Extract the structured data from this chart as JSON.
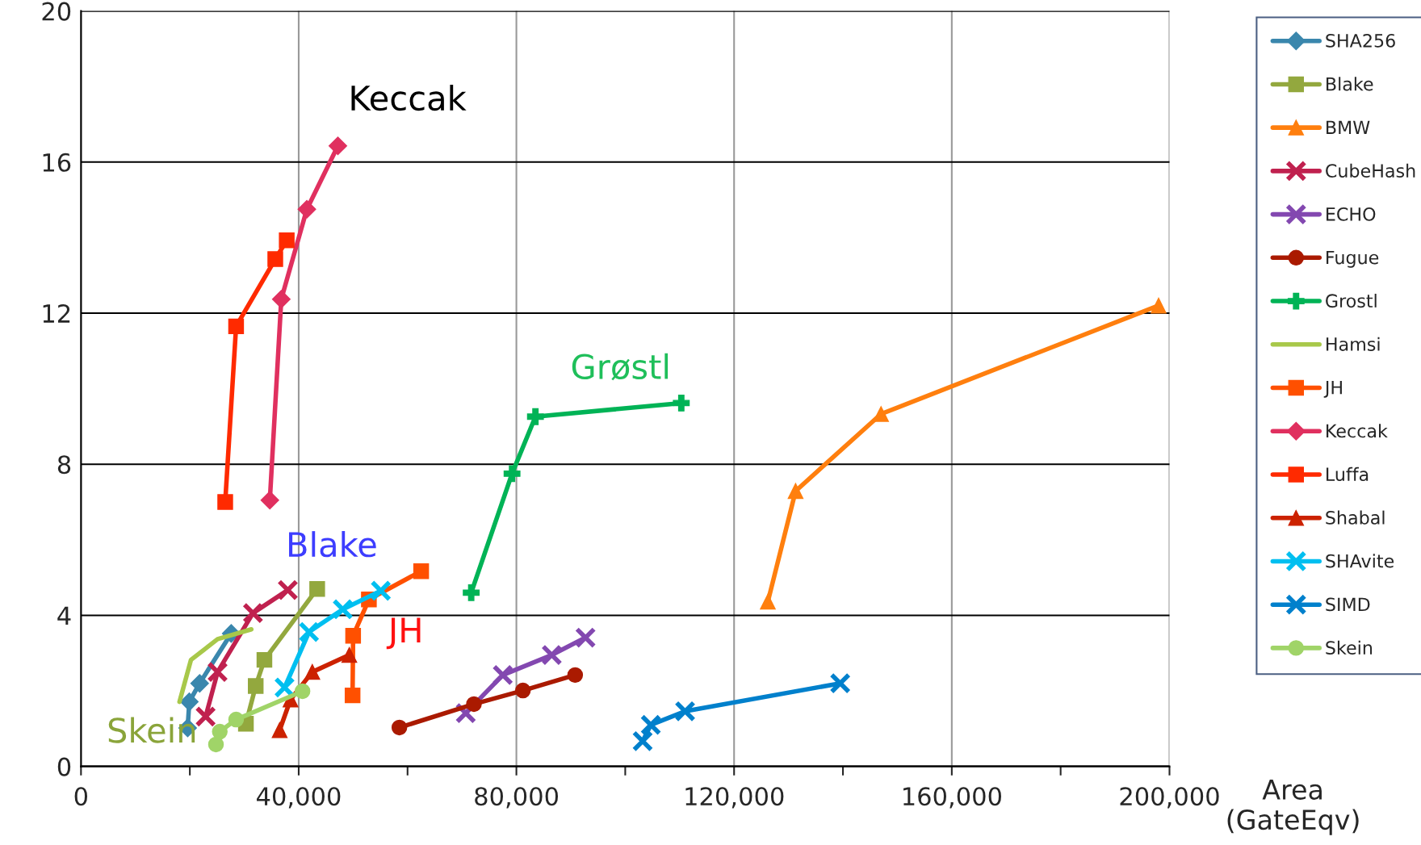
{
  "chart_data": {
    "type": "line",
    "xlabel": "Area\n(GateEqv)",
    "xlim": [
      0,
      200000
    ],
    "xticks": [
      0,
      {
        "value": 20000,
        "label": null
      },
      {
        "value": 40000,
        "label": "40,000"
      },
      {
        "value": 60000,
        "label": null
      },
      {
        "value": 80000,
        "label": "80,000"
      },
      {
        "value": 100000,
        "label": null
      },
      {
        "value": 120000,
        "label": "120,000"
      },
      {
        "value": 140000,
        "label": null
      },
      {
        "value": 160000,
        "label": "160,000"
      },
      {
        "value": 180000,
        "label": null
      },
      {
        "value": 200000,
        "label": "200,000"
      }
    ],
    "ylim": [
      0,
      20
    ],
    "yticks": [
      0,
      4,
      8,
      12,
      16,
      20
    ],
    "grid": true,
    "legend": "right",
    "series": [
      {
        "name": "SHA256",
        "color": "#3a87ad",
        "marker": "diamond",
        "x": [
          19600,
          19900,
          21800,
          27600
        ],
        "values": [
          1.02,
          1.71,
          2.2,
          3.52
        ]
      },
      {
        "name": "Blake",
        "color": "#93a83e",
        "marker": "square",
        "x": [
          30300,
          32100,
          33700,
          43400
        ],
        "values": [
          1.13,
          2.13,
          2.82,
          4.7
        ]
      },
      {
        "name": "BMW",
        "color": "#ff7f0e",
        "marker": "triangle",
        "x": [
          126200,
          131300,
          147000,
          198000
        ],
        "values": [
          4.36,
          7.29,
          9.33,
          12.2
        ]
      },
      {
        "name": "CubeHash",
        "color": "#c0214f",
        "marker": "cross",
        "x": [
          22900,
          25100,
          31600,
          38000
        ],
        "values": [
          1.32,
          2.5,
          4.06,
          4.67
        ]
      },
      {
        "name": "ECHO",
        "color": "#8348b0",
        "marker": "cross",
        "x": [
          70700,
          77500,
          86500,
          92700
        ],
        "values": [
          1.41,
          2.42,
          2.95,
          3.41
        ]
      },
      {
        "name": "Fugue",
        "color": "#aa1a00",
        "marker": "circle",
        "x": [
          58500,
          72200,
          81200,
          90800
        ],
        "values": [
          1.03,
          1.65,
          2.01,
          2.42
        ]
      },
      {
        "name": "Grostl",
        "color": "#00b356",
        "marker": "plus",
        "x": [
          71700,
          79200,
          83500,
          110300
        ],
        "values": [
          4.6,
          7.75,
          9.26,
          9.62
        ]
      },
      {
        "name": "Hamsi",
        "color": "#a8c84a",
        "marker": "none",
        "x": [
          18100,
          20200,
          25100,
          31300
        ],
        "values": [
          1.71,
          2.82,
          3.37,
          3.63
        ]
      },
      {
        "name": "JH",
        "color": "#ff5000",
        "marker": "square",
        "x": [
          49900,
          50000,
          52900,
          62500
        ],
        "values": [
          1.88,
          3.46,
          4.42,
          5.17
        ]
      },
      {
        "name": "Keccak",
        "color": "#e0305f",
        "marker": "diamond",
        "x": [
          34700,
          36800,
          41500,
          47200
        ],
        "values": [
          7.05,
          12.37,
          14.75,
          16.43
        ]
      },
      {
        "name": "Luffa",
        "color": "#ff2a00",
        "marker": "square",
        "x": [
          26500,
          28500,
          35700,
          37800
        ],
        "values": [
          7.0,
          11.65,
          13.43,
          13.93
        ]
      },
      {
        "name": "Shabal",
        "color": "#cc2200",
        "marker": "triangle",
        "x": [
          36500,
          38500,
          42500,
          49300
        ],
        "values": [
          0.96,
          1.77,
          2.5,
          2.95
        ]
      },
      {
        "name": "SHAvite",
        "color": "#00bff0",
        "marker": "cross",
        "x": [
          37400,
          41900,
          48100,
          55100
        ],
        "values": [
          2.09,
          3.56,
          4.16,
          4.65
        ]
      },
      {
        "name": "SIMD",
        "color": "#0080cc",
        "marker": "cross",
        "x": [
          103200,
          104700,
          111000,
          139500
        ],
        "values": [
          0.67,
          1.1,
          1.46,
          2.2
        ]
      },
      {
        "name": "Skein",
        "color": "#a0d468",
        "marker": "circle",
        "x": [
          24800,
          25500,
          28500,
          40700
        ],
        "values": [
          0.58,
          0.92,
          1.24,
          1.99
        ]
      }
    ],
    "annotations": [
      {
        "text": "Keccak",
        "x": 47200,
        "y": 16.43
      },
      {
        "text": "Grøstl",
        "x": 83500,
        "y": 9.26
      },
      {
        "text": "Blake",
        "x": 43400,
        "y": 4.7
      },
      {
        "text": "JH",
        "x": 52900,
        "y": 4.42
      },
      {
        "text": "Skein",
        "x": 24800,
        "y": 0.58
      }
    ]
  }
}
